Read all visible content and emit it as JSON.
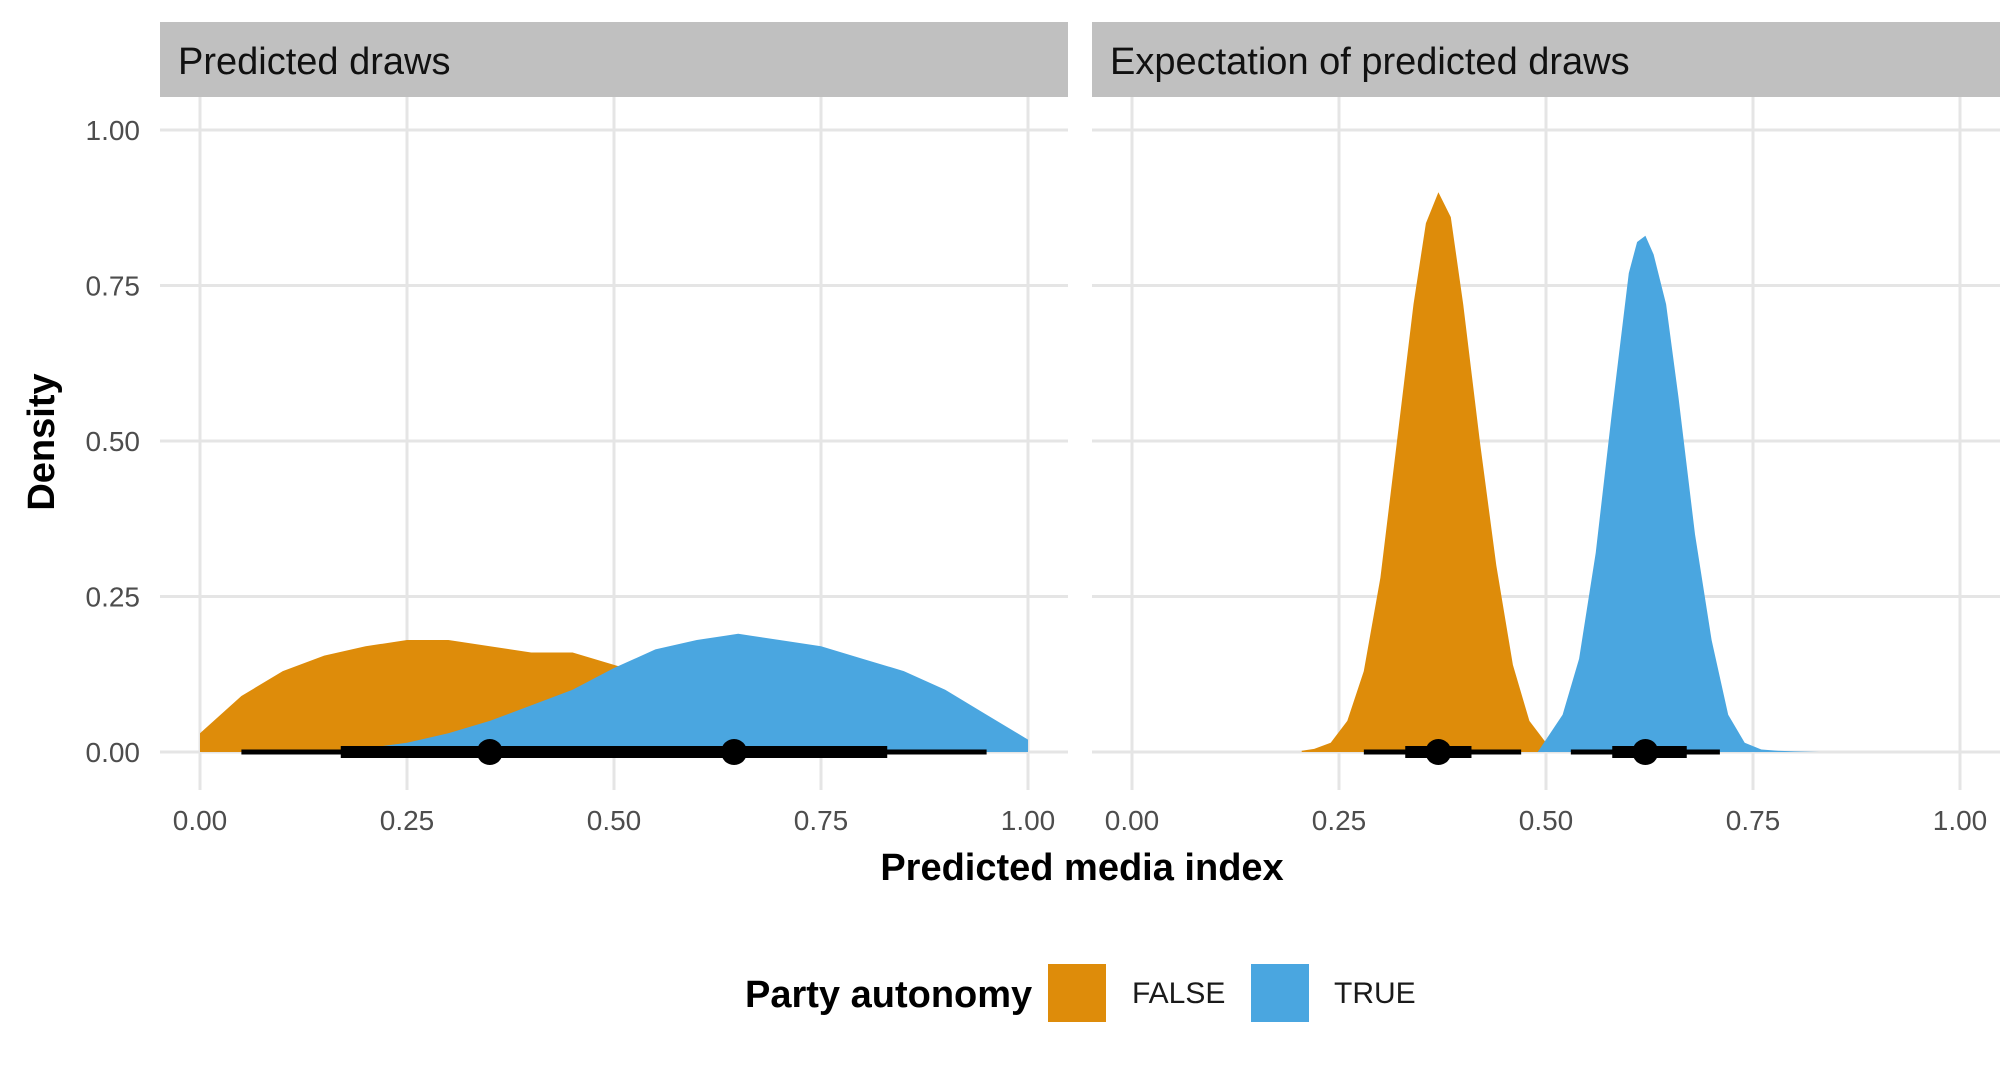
{
  "chart_data": [
    {
      "type": "area",
      "panel_title": "Predicted draws",
      "xlim": [
        0,
        1
      ],
      "ylim": [
        0,
        1
      ],
      "x_ticks": [
        "0.00",
        "0.25",
        "0.50",
        "0.75",
        "1.00"
      ],
      "y_ticks": [
        "0.00",
        "0.25",
        "0.50",
        "0.75",
        "1.00"
      ],
      "series": [
        {
          "name": "FALSE",
          "color": "#DE8C0A",
          "density": {
            "x": [
              0.0,
              0.05,
              0.1,
              0.15,
              0.2,
              0.25,
              0.3,
              0.35,
              0.4,
              0.45,
              0.5,
              0.55,
              0.6,
              0.65,
              0.7,
              0.75,
              0.8,
              0.85,
              0.9,
              0.95,
              0.99
            ],
            "y": [
              0.03,
              0.09,
              0.13,
              0.155,
              0.17,
              0.18,
              0.18,
              0.17,
              0.16,
              0.16,
              0.14,
              0.12,
              0.095,
              0.07,
              0.05,
              0.035,
              0.022,
              0.012,
              0.006,
              0.002,
              0.0
            ]
          },
          "point": 0.35,
          "interval_66": [
            0.17,
            0.57
          ],
          "interval_95": [
            0.05,
            0.83
          ]
        },
        {
          "name": "TRUE",
          "color": "#4AA6E0",
          "density": {
            "x": [
              0.16,
              0.2,
              0.25,
              0.3,
              0.35,
              0.4,
              0.45,
              0.5,
              0.55,
              0.6,
              0.65,
              0.7,
              0.75,
              0.8,
              0.85,
              0.9,
              0.95,
              1.0
            ],
            "y": [
              0.002,
              0.006,
              0.015,
              0.03,
              0.05,
              0.075,
              0.1,
              0.135,
              0.165,
              0.18,
              0.19,
              0.18,
              0.17,
              0.15,
              0.13,
              0.1,
              0.06,
              0.02
            ]
          },
          "point": 0.645,
          "interval_66": [
            0.42,
            0.83
          ],
          "interval_95": [
            0.17,
            0.95
          ]
        }
      ]
    },
    {
      "type": "area",
      "panel_title": "Expectation of predicted draws",
      "xlim": [
        0,
        1
      ],
      "ylim": [
        0,
        1
      ],
      "x_ticks": [
        "0.00",
        "0.25",
        "0.50",
        "0.75",
        "1.00"
      ],
      "y_ticks": [
        "0.00",
        "0.25",
        "0.50",
        "0.75",
        "1.00"
      ],
      "series": [
        {
          "name": "FALSE",
          "color": "#DE8C0A",
          "density": {
            "x": [
              0.205,
              0.22,
              0.24,
              0.26,
              0.28,
              0.3,
              0.32,
              0.34,
              0.355,
              0.37,
              0.385,
              0.4,
              0.42,
              0.44,
              0.46,
              0.48,
              0.5,
              0.52,
              0.53
            ],
            "y": [
              0.002,
              0.005,
              0.015,
              0.05,
              0.13,
              0.28,
              0.5,
              0.72,
              0.85,
              0.9,
              0.86,
              0.72,
              0.5,
              0.3,
              0.14,
              0.05,
              0.015,
              0.003,
              0.0
            ]
          },
          "point": 0.37,
          "interval_66": [
            0.33,
            0.41
          ],
          "interval_95": [
            0.28,
            0.47
          ]
        },
        {
          "name": "TRUE",
          "color": "#4AA6E0",
          "density": {
            "x": [
              0.49,
              0.5,
              0.52,
              0.54,
              0.56,
              0.58,
              0.6,
              0.61,
              0.62,
              0.63,
              0.645,
              0.66,
              0.68,
              0.7,
              0.72,
              0.74,
              0.76,
              0.78,
              0.8,
              0.83
            ],
            "y": [
              0.0,
              0.02,
              0.06,
              0.15,
              0.32,
              0.55,
              0.77,
              0.82,
              0.83,
              0.8,
              0.72,
              0.57,
              0.35,
              0.18,
              0.06,
              0.015,
              0.004,
              0.002,
              0.001,
              0.0
            ]
          },
          "point": 0.62,
          "interval_66": [
            0.58,
            0.67
          ],
          "interval_95": [
            0.53,
            0.71
          ]
        }
      ]
    }
  ],
  "x_axis_title": "Predicted media index",
  "y_axis_title": "Density",
  "legend": {
    "title": "Party autonomy",
    "items": [
      {
        "label": "FALSE",
        "color": "#DE8C0A"
      },
      {
        "label": "TRUE",
        "color": "#4AA6E0"
      }
    ],
    "placement": "bottom"
  },
  "grid": true,
  "colors": {
    "strip_background": "#C0C0C0",
    "grid": "#E5E5E5",
    "interval": "#000000"
  }
}
